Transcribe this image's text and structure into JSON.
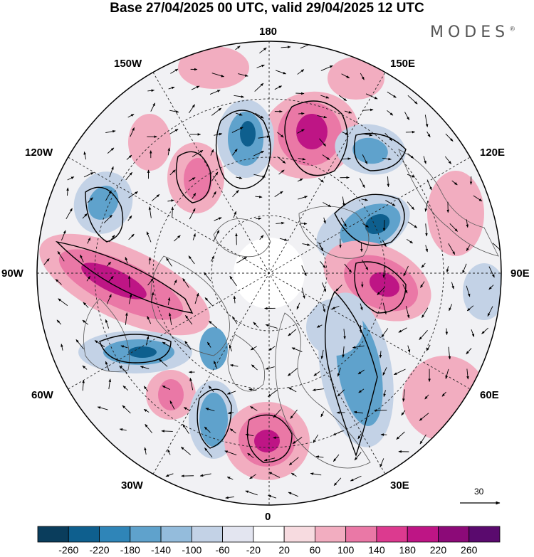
{
  "title": "Base 27/04/2025 00 UTC, valid 29/04/2025 12 UTC",
  "brand": "MODES",
  "brand_mark": "®",
  "longitude_labels": {
    "n180": "180",
    "n150w": "150W",
    "n150e": "150E",
    "n120w": "120W",
    "n120e": "120E",
    "n90w": "90W",
    "n90e": "90E",
    "n60w": "60W",
    "n60e": "60E",
    "n30w": "30W",
    "n30e": "30E",
    "n0": "0"
  },
  "wind_scale_label": "30",
  "colorbar": {
    "labels": [
      "-260",
      "-220",
      "-180",
      "-140",
      "-100",
      "-60",
      "-20",
      "20",
      "60",
      "100",
      "140",
      "180",
      "220",
      "260"
    ],
    "colors": [
      "#0a3d5c",
      "#0e5f8e",
      "#2f85b8",
      "#5fa2cc",
      "#94bcdc",
      "#c3d2e6",
      "#e3e5f0",
      "#ffffff",
      "#f7dbe0",
      "#f2adc0",
      "#ea78a6",
      "#dc3a8f",
      "#be1585",
      "#8c0a78",
      "#5a0a6e"
    ]
  },
  "map_colors": {
    "neg_strong": "#0e5f8e",
    "neg_mid": "#5fa2cc",
    "neg_light": "#c3d2e6",
    "pos_strong": "#be1585",
    "pos_mid": "#ea78a6",
    "pos_light": "#f2adc0"
  }
}
